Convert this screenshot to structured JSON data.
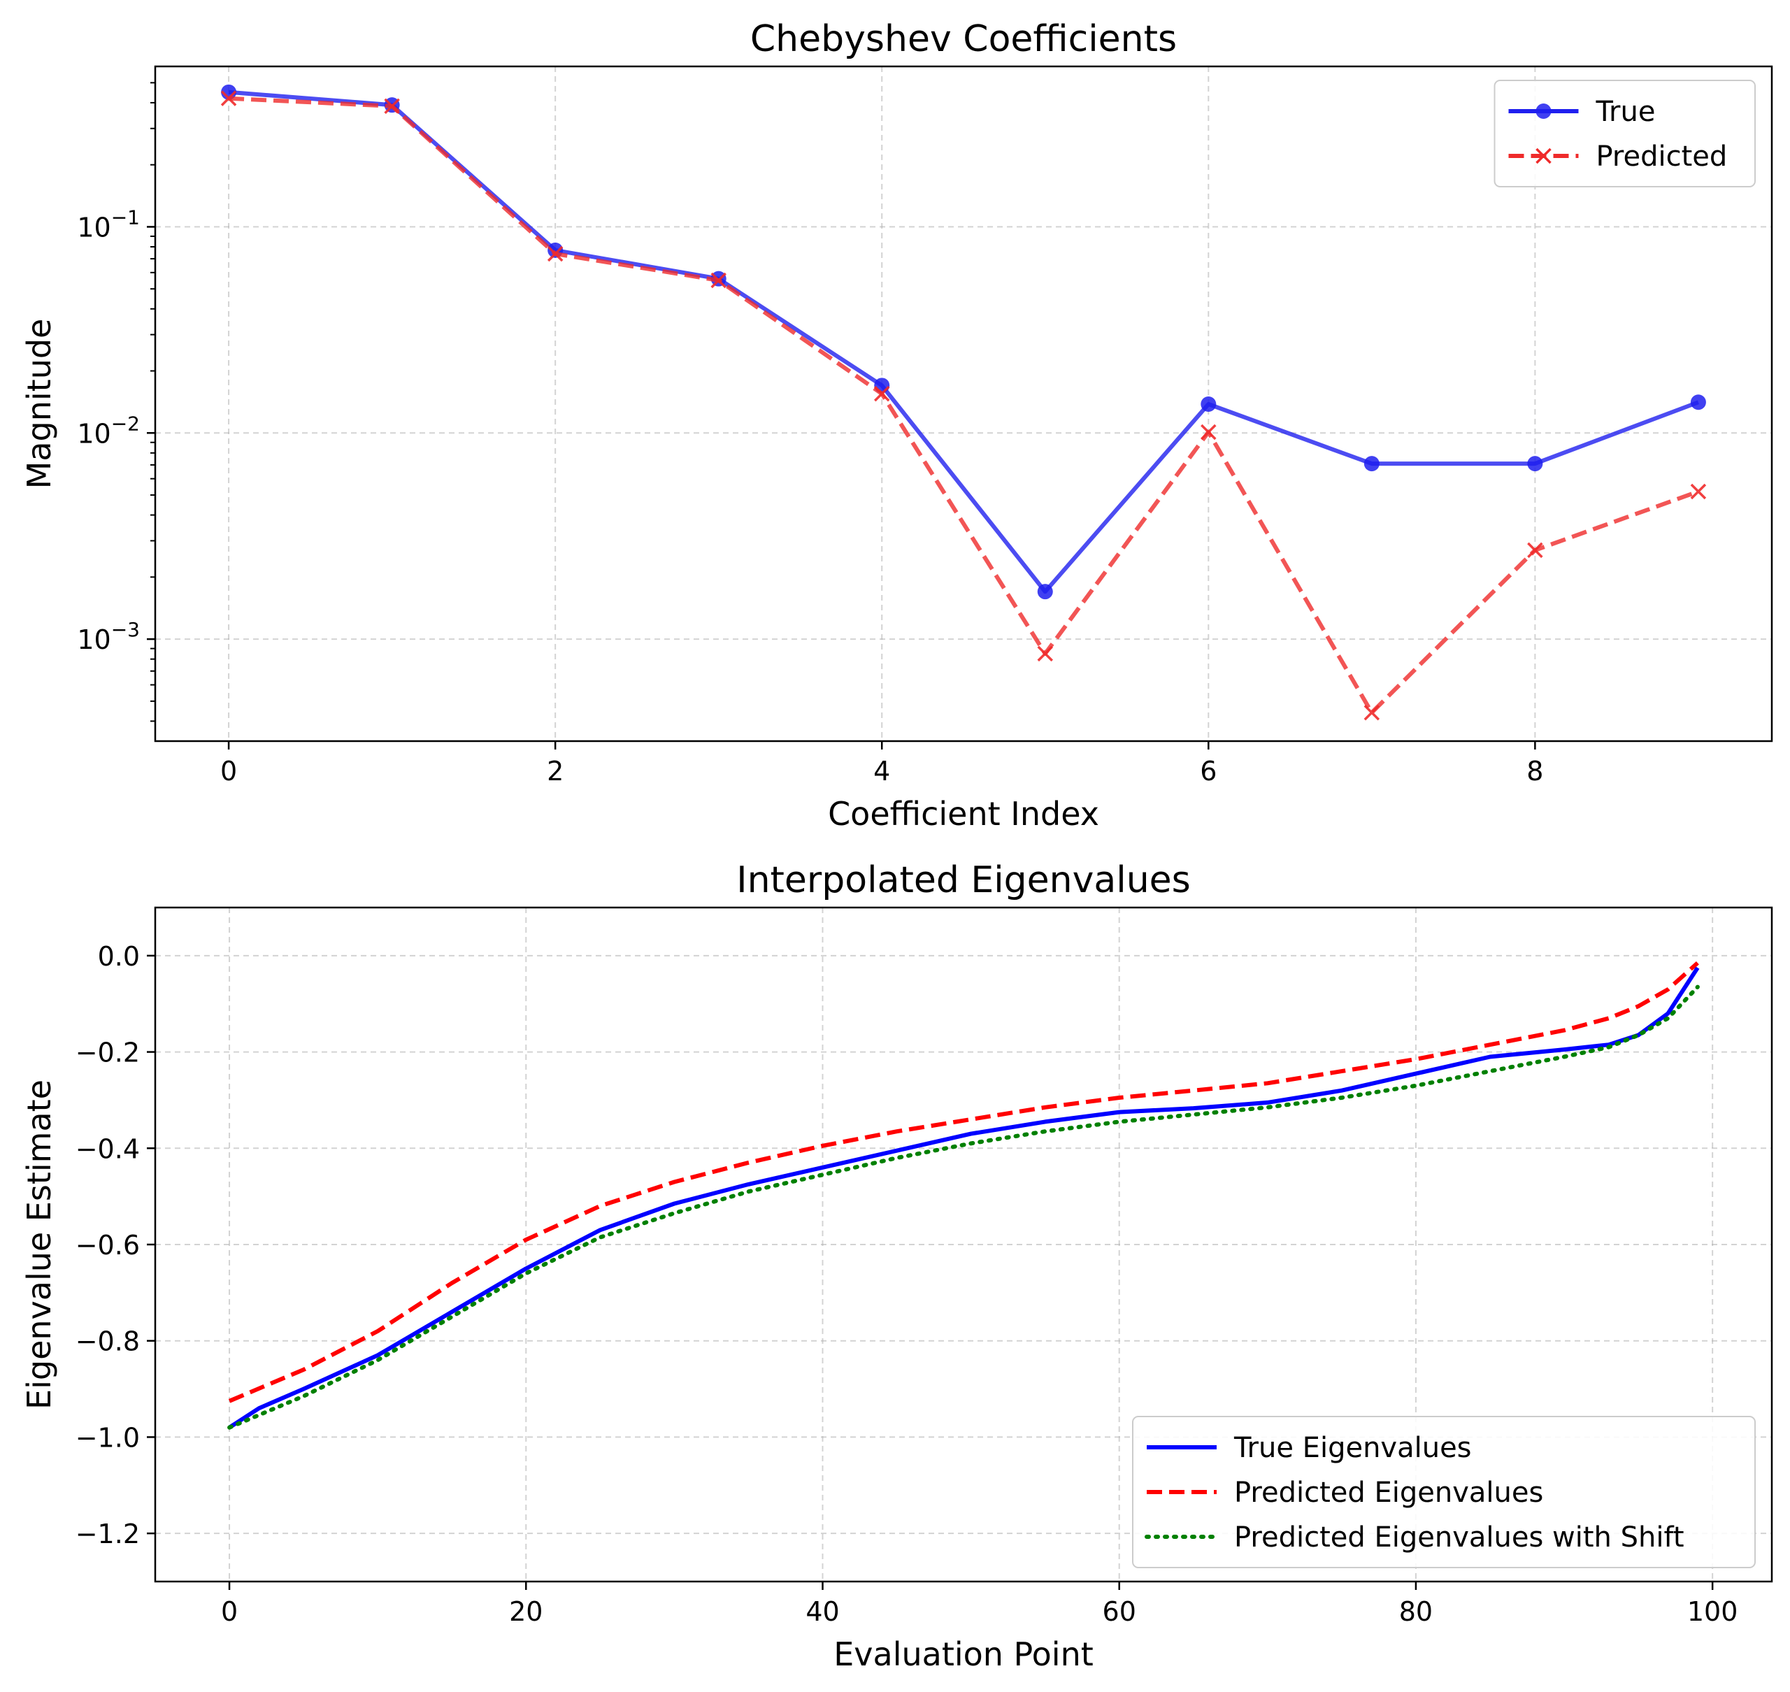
{
  "chart_data": [
    {
      "type": "line",
      "yscale": "log",
      "title": "Chebyshev Coefficients",
      "xlabel": "Coefficient Index",
      "ylabel": "Magnitude",
      "xlim": [
        -0.45,
        9.45
      ],
      "ylim": [
        0.00032,
        0.6
      ],
      "xticks": [
        0,
        2,
        4,
        6,
        8
      ],
      "xtick_labels": [
        "0",
        "2",
        "4",
        "6",
        "8"
      ],
      "yticks": [
        0.001,
        0.01,
        0.1
      ],
      "ytick_labels": [
        {
          "base": "10",
          "exp": "−3"
        },
        {
          "base": "10",
          "exp": "−2"
        },
        {
          "base": "10",
          "exp": "−1"
        }
      ],
      "grid": true,
      "legend_position": "top-right",
      "x": [
        0,
        1,
        2,
        3,
        4,
        5,
        6,
        7,
        8,
        9
      ],
      "series": [
        {
          "name": "True",
          "color": "#1f1fef",
          "style": "solid-marker-circle",
          "values": [
            0.45,
            0.39,
            0.077,
            0.056,
            0.017,
            0.0017,
            0.0138,
            0.0071,
            0.0071,
            0.0141
          ]
        },
        {
          "name": "Predicted",
          "color": "#ef2a2a",
          "style": "dashed-marker-x",
          "values": [
            0.42,
            0.385,
            0.074,
            0.055,
            0.0155,
            0.00085,
            0.0101,
            0.00044,
            0.0027,
            0.0052
          ]
        }
      ]
    },
    {
      "type": "line",
      "title": "Interpolated Eigenvalues",
      "xlabel": "Evaluation Point",
      "ylabel": "Eigenvalue Estimate",
      "xlim": [
        -5,
        104
      ],
      "ylim": [
        -1.3,
        0.1
      ],
      "xticks": [
        0,
        20,
        40,
        60,
        80,
        100
      ],
      "xtick_labels": [
        "0",
        "20",
        "40",
        "60",
        "80",
        "100"
      ],
      "yticks": [
        -1.2,
        -1.0,
        -0.8,
        -0.6,
        -0.4,
        -0.2,
        0.0
      ],
      "ytick_labels": [
        "−1.2",
        "−1.0",
        "−0.8",
        "−0.6",
        "−0.4",
        "−0.2",
        "0.0"
      ],
      "grid": true,
      "legend_position": "bottom-right",
      "series": [
        {
          "name": "True Eigenvalues",
          "color": "#0000ff",
          "style": "solid",
          "x": [
            0,
            2,
            5,
            10,
            15,
            20,
            25,
            30,
            35,
            40,
            45,
            50,
            55,
            60,
            65,
            70,
            75,
            80,
            85,
            90,
            93,
            95,
            97,
            99
          ],
          "y": [
            -0.98,
            -0.94,
            -0.9,
            -0.83,
            -0.74,
            -0.65,
            -0.57,
            -0.515,
            -0.475,
            -0.44,
            -0.405,
            -0.37,
            -0.345,
            -0.325,
            -0.317,
            -0.305,
            -0.28,
            -0.245,
            -0.21,
            -0.195,
            -0.185,
            -0.165,
            -0.12,
            -0.025
          ]
        },
        {
          "name": "Predicted Eigenvalues",
          "color": "#ff0000",
          "style": "dashed",
          "x": [
            0,
            5,
            10,
            15,
            20,
            25,
            30,
            35,
            40,
            45,
            50,
            55,
            60,
            65,
            70,
            75,
            80,
            85,
            90,
            93,
            95,
            97,
            99
          ],
          "y": [
            -0.925,
            -0.86,
            -0.78,
            -0.68,
            -0.59,
            -0.52,
            -0.47,
            -0.43,
            -0.395,
            -0.365,
            -0.34,
            -0.315,
            -0.295,
            -0.28,
            -0.265,
            -0.24,
            -0.215,
            -0.185,
            -0.155,
            -0.13,
            -0.105,
            -0.07,
            -0.015
          ]
        },
        {
          "name": "Predicted Eigenvalues with Shift",
          "color": "#008000",
          "style": "dotted",
          "x": [
            0,
            5,
            10,
            15,
            20,
            25,
            30,
            35,
            40,
            45,
            50,
            55,
            60,
            65,
            70,
            75,
            80,
            85,
            90,
            93,
            95,
            97,
            99
          ],
          "y": [
            -0.98,
            -0.915,
            -0.84,
            -0.75,
            -0.66,
            -0.585,
            -0.535,
            -0.49,
            -0.455,
            -0.42,
            -0.39,
            -0.365,
            -0.345,
            -0.33,
            -0.315,
            -0.295,
            -0.27,
            -0.24,
            -0.21,
            -0.19,
            -0.165,
            -0.13,
            -0.065
          ]
        }
      ]
    }
  ]
}
